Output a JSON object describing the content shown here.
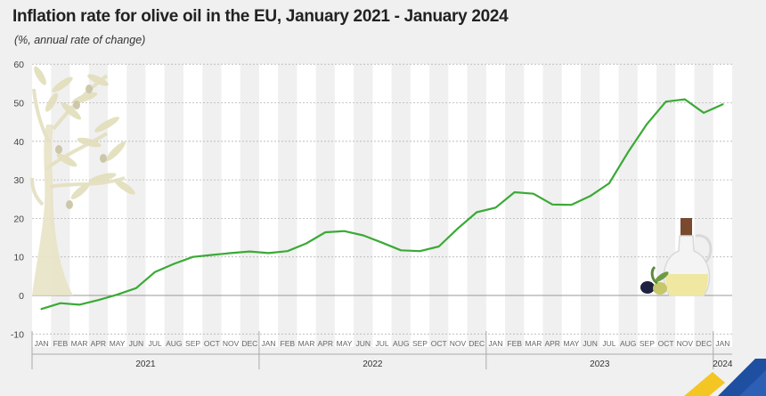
{
  "title": "Inflation rate for olive oil in the EU, January 2021 - January 2024",
  "subtitle": "(%, annual rate of change)",
  "chart_data": {
    "type": "line",
    "ylim": [
      -10,
      60
    ],
    "yticks": [
      "60",
      "50",
      "40",
      "30",
      "20",
      "10",
      "0",
      "-10"
    ],
    "ytick_values": [
      60,
      50,
      40,
      30,
      20,
      10,
      0,
      -10
    ],
    "grid": "horizontal dashed with alternating vertical month bands",
    "categories": [
      "JAN",
      "FEB",
      "MAR",
      "APR",
      "MAY",
      "JUN",
      "JUL",
      "AUG",
      "SEP",
      "OCT",
      "NOV",
      "DEC",
      "JAN",
      "FEB",
      "MAR",
      "APR",
      "MAY",
      "JUN",
      "JUL",
      "AUG",
      "SEP",
      "OCT",
      "NOV",
      "DEC",
      "JAN",
      "FEB",
      "MAR",
      "APR",
      "MAY",
      "JUN",
      "JUL",
      "AUG",
      "SEP",
      "OCT",
      "NOV",
      "DEC",
      "JAN"
    ],
    "years": [
      {
        "label": "2021",
        "start": 0,
        "count": 12
      },
      {
        "label": "2022",
        "start": 12,
        "count": 12
      },
      {
        "label": "2023",
        "start": 24,
        "count": 12
      },
      {
        "label": "2024",
        "start": 36,
        "count": 1
      }
    ],
    "series": [
      {
        "color": "#3aaa35",
        "values": [
          -3.5,
          -2.0,
          -2.4,
          -1.2,
          0.2,
          1.9,
          6.1,
          8.2,
          10.0,
          10.5,
          11.0,
          11.4,
          11.0,
          11.5,
          13.5,
          16.4,
          16.7,
          15.6,
          13.7,
          11.7,
          11.5,
          12.7,
          17.4,
          21.6,
          22.8,
          26.8,
          26.4,
          23.6,
          23.5,
          25.8,
          29.1,
          37.2,
          44.5,
          50.3,
          50.9,
          47.4,
          49.6
        ]
      }
    ]
  },
  "colors": {
    "line": "#3aaa35",
    "band": "#ffffff",
    "background": "#f0f0f0",
    "grid": "#b5b5b5",
    "zero_line": "#999999",
    "tick_text": "#666666",
    "brand_yellow": "#f3c623",
    "brand_blue": "#1f4fa0"
  },
  "decorations": {
    "tree": "olive-tree-illustration",
    "bottle": "olive-oil-bottle-illustration",
    "logo": "eurostat-corner-logo"
  }
}
